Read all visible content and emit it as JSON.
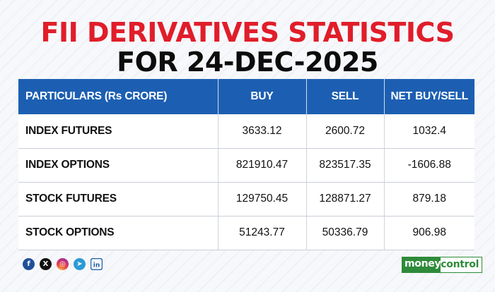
{
  "title": {
    "line1": "FII DERIVATIVES STATISTICS",
    "line2": "FOR 24-DEC-2025"
  },
  "table": {
    "headers": [
      "PARTICULARS (Rs CRORE)",
      "BUY",
      "SELL",
      "NET BUY/SELL"
    ],
    "rows": [
      [
        "INDEX FUTURES",
        "3633.12",
        "2600.72",
        "1032.4"
      ],
      [
        "INDEX OPTIONS",
        "821910.47",
        "823517.35",
        "-1606.88"
      ],
      [
        "STOCK FUTURES",
        "129750.45",
        "128871.27",
        "879.18"
      ],
      [
        "STOCK OPTIONS",
        "51243.77",
        "50336.79",
        "906.98"
      ]
    ]
  },
  "socials": [
    {
      "icon": "facebook-icon",
      "glyph": "f"
    },
    {
      "icon": "x-icon",
      "glyph": "X"
    },
    {
      "icon": "instagram-icon",
      "glyph": "◎"
    },
    {
      "icon": "telegram-icon",
      "glyph": "➤"
    },
    {
      "icon": "linkedin-icon",
      "glyph": "in"
    }
  ],
  "brand": {
    "part1": "money",
    "part2": "control",
    "color": "#2e8b3a"
  },
  "colors": {
    "title_accent": "#e11d2a",
    "header_bg": "#1c5fb2"
  }
}
